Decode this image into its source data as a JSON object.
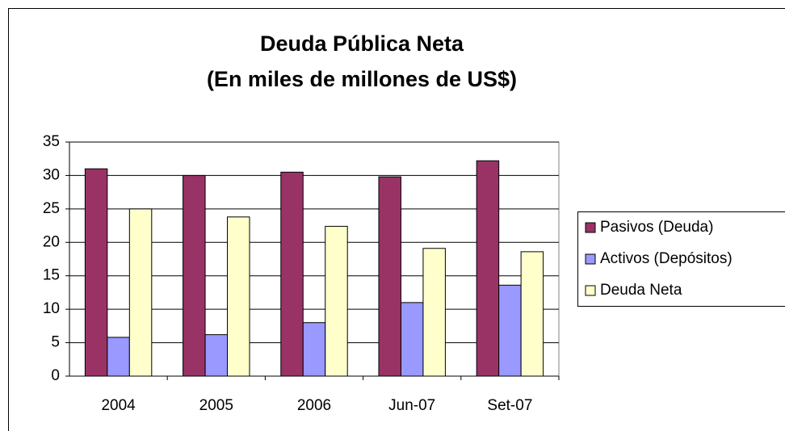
{
  "chart_data": {
    "type": "bar",
    "title": "Deuda Pública Neta",
    "subtitle": "(En miles de millones de US$)",
    "categories": [
      "2004",
      "2005",
      "2006",
      "Jun-07",
      "Set-07"
    ],
    "series": [
      {
        "name": "Pasivos (Deuda)",
        "color": "#993366",
        "values": [
          31.0,
          30.0,
          30.5,
          29.8,
          32.2
        ]
      },
      {
        "name": "Activos (Depósitos)",
        "color": "#9999ff",
        "values": [
          5.8,
          6.2,
          8.0,
          11.0,
          13.6
        ]
      },
      {
        "name": "Deuda Neta",
        "color": "#ffffcc",
        "values": [
          25.0,
          23.8,
          22.4,
          19.1,
          18.6
        ]
      }
    ],
    "ylim": [
      0,
      35
    ],
    "yticks": [
      0,
      5,
      10,
      15,
      20,
      25,
      30,
      35
    ],
    "grid": true,
    "legend": "right"
  }
}
